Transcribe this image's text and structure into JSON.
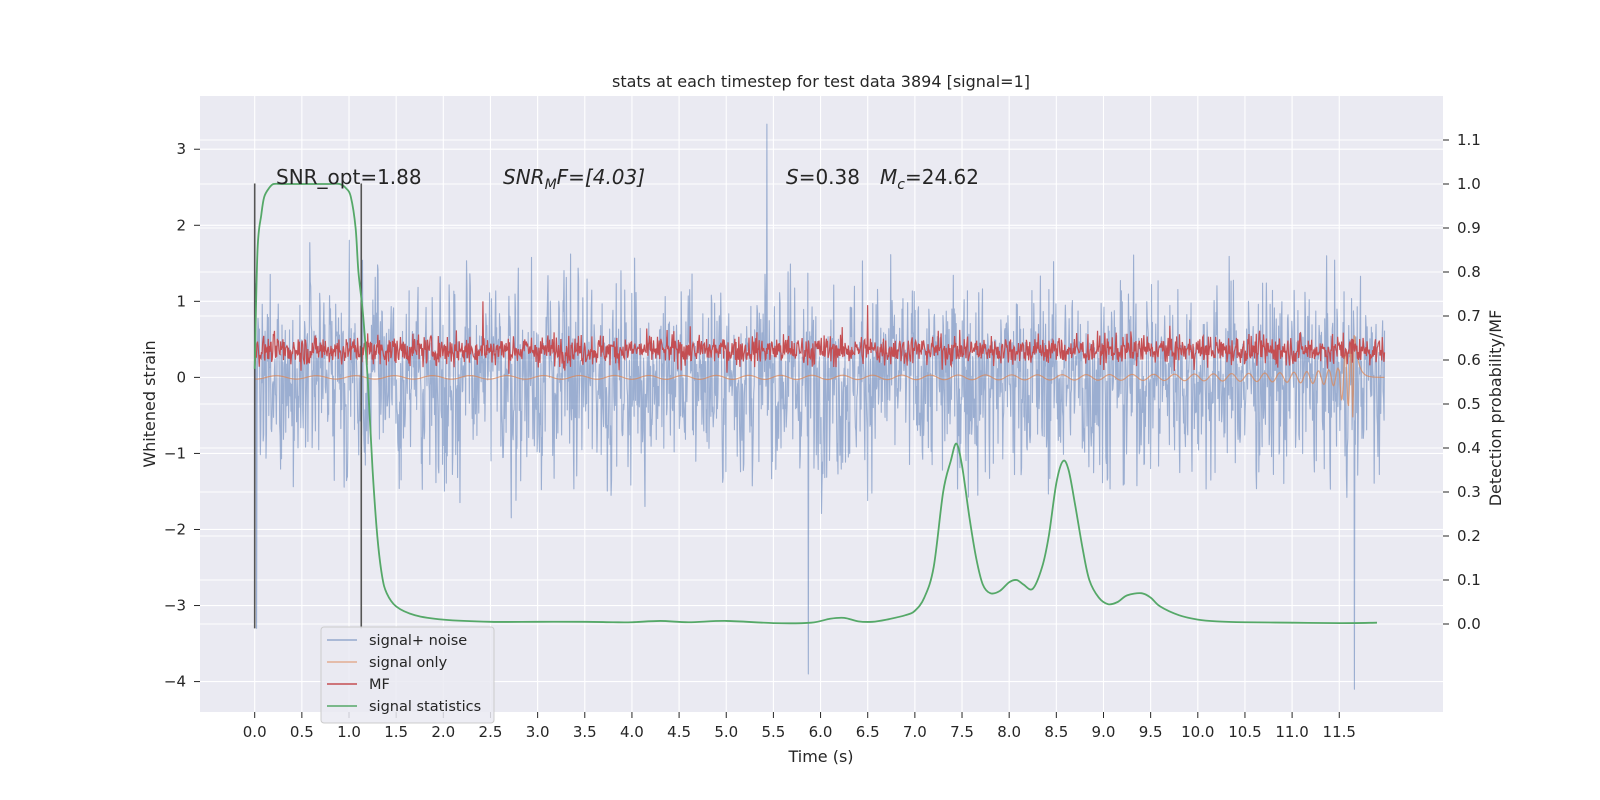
{
  "chart_data": {
    "type": "line",
    "title": "stats at each timestep for test data 3894 [signal=1]",
    "xlabel": "Time (s)",
    "ylabel": "Whitened strain",
    "ylabel_right": "Detection probability/MF",
    "xlim": [
      -0.58,
      12.6
    ],
    "ylim": [
      -4.4,
      3.7
    ],
    "ylim_right": [
      -0.2,
      1.2
    ],
    "x_ticks": [
      0.0,
      0.5,
      1.0,
      1.5,
      2.0,
      2.5,
      3.0,
      3.5,
      4.0,
      4.5,
      5.0,
      5.5,
      6.0,
      6.5,
      7.0,
      7.5,
      8.0,
      8.5,
      9.0,
      9.5,
      10.0,
      10.5,
      11.0,
      11.5
    ],
    "x_tick_labels": [
      "0.0",
      "0.5",
      "1.0",
      "1.5",
      "2.0",
      "2.5",
      "3.0",
      "3.5",
      "4.0",
      "4.5",
      "5.0",
      "5.5",
      "6.0",
      "6.5",
      "7.0",
      "7.5",
      "8.0",
      "8.5",
      "9.0",
      "9.5",
      "10.0",
      "10.5",
      "11.0",
      "11.5"
    ],
    "y_ticks": [
      3,
      2,
      1,
      0,
      -1,
      -2,
      -3,
      -4
    ],
    "y_tick_labels": [
      "3",
      "2",
      "1",
      "0",
      "−1",
      "−2",
      "−3",
      "−4"
    ],
    "y_right_ticks": [
      1.1,
      1.0,
      0.9,
      0.8,
      0.7,
      0.6,
      0.5,
      0.4,
      0.3,
      0.2,
      0.1,
      0.0
    ],
    "y_right_tick_labels": [
      "1.1",
      "1.0",
      "0.9",
      "0.8",
      "0.7",
      "0.6",
      "0.5",
      "0.4",
      "0.3",
      "0.2",
      "0.1",
      "0.0"
    ],
    "grid": true,
    "legend_position": "lower-left",
    "annotations": {
      "snr_opt": "SNR_opt=1.88",
      "snr_mf_main": "SNR",
      "snr_mf_sub": "M",
      "snr_mf_tail": "F=[4.03]",
      "s_label": "S",
      "s_value": "=0.38",
      "mc_main": "M",
      "mc_sub": "c",
      "mc_value": "=24.62"
    },
    "vertical_markers": [
      0.0,
      1.13
    ],
    "series": [
      {
        "name": "signal+ noise",
        "axis": "left",
        "color": "#4c72b0",
        "style": "noise band, approx. mean 0, std 1.1, extremes 3.3 at 5.43 s and -4.1 at 11.66 s",
        "extremes": [
          [
            5.43,
            3.33
          ],
          [
            11.66,
            -4.1
          ],
          [
            5.87,
            -3.9
          ],
          [
            0.02,
            -3.3
          ]
        ]
      },
      {
        "name": "signal only",
        "axis": "left",
        "color": "#dd8452",
        "style": "near-zero chirp growing toward merger at about 11.66 s, reaching -0.35",
        "extremes": [
          [
            11.66,
            -0.35
          ]
        ]
      },
      {
        "name": "MF",
        "axis": "left",
        "color": "#c44e52",
        "style": "fluctuating band between about 0.05 and 1.0",
        "extremes": [
          [
            2.42,
            1.0
          ],
          [
            6.5,
            0.95
          ]
        ]
      },
      {
        "name": "signal statistics",
        "axis": "right",
        "color": "#55a868",
        "x": [
          0.0,
          0.03,
          0.07,
          0.1,
          0.15,
          0.2,
          0.3,
          0.5,
          0.8,
          0.9,
          0.97,
          1.02,
          1.07,
          1.1,
          1.15,
          1.2,
          1.25,
          1.3,
          1.35,
          1.4,
          1.5,
          1.7,
          2.0,
          2.5,
          3.0,
          3.5,
          3.8,
          4.0,
          4.3,
          4.6,
          5.0,
          5.5,
          5.9,
          6.1,
          6.25,
          6.4,
          6.55,
          6.7,
          6.9,
          7.0,
          7.1,
          7.2,
          7.3,
          7.38,
          7.44,
          7.5,
          7.58,
          7.65,
          7.72,
          7.8,
          7.9,
          8.0,
          8.08,
          8.15,
          8.25,
          8.35,
          8.42,
          8.5,
          8.57,
          8.63,
          8.7,
          8.78,
          8.85,
          8.95,
          9.05,
          9.15,
          9.25,
          9.4,
          9.5,
          9.6,
          9.8,
          10.0,
          10.2,
          10.5,
          11.0,
          11.5,
          11.9
        ],
        "values": [
          0.58,
          0.85,
          0.93,
          0.97,
          0.99,
          1.0,
          1.0,
          1.0,
          1.0,
          1.0,
          0.99,
          0.97,
          0.9,
          0.8,
          0.7,
          0.55,
          0.35,
          0.2,
          0.11,
          0.07,
          0.04,
          0.02,
          0.01,
          0.005,
          0.005,
          0.005,
          0.004,
          0.004,
          0.007,
          0.004,
          0.007,
          0.002,
          0.003,
          0.012,
          0.014,
          0.006,
          0.005,
          0.01,
          0.02,
          0.03,
          0.06,
          0.13,
          0.3,
          0.37,
          0.41,
          0.36,
          0.24,
          0.15,
          0.09,
          0.07,
          0.075,
          0.095,
          0.1,
          0.09,
          0.08,
          0.13,
          0.2,
          0.32,
          0.37,
          0.35,
          0.27,
          0.17,
          0.1,
          0.06,
          0.045,
          0.05,
          0.065,
          0.07,
          0.06,
          0.04,
          0.02,
          0.01,
          0.006,
          0.004,
          0.003,
          0.002,
          0.003
        ]
      }
    ]
  }
}
